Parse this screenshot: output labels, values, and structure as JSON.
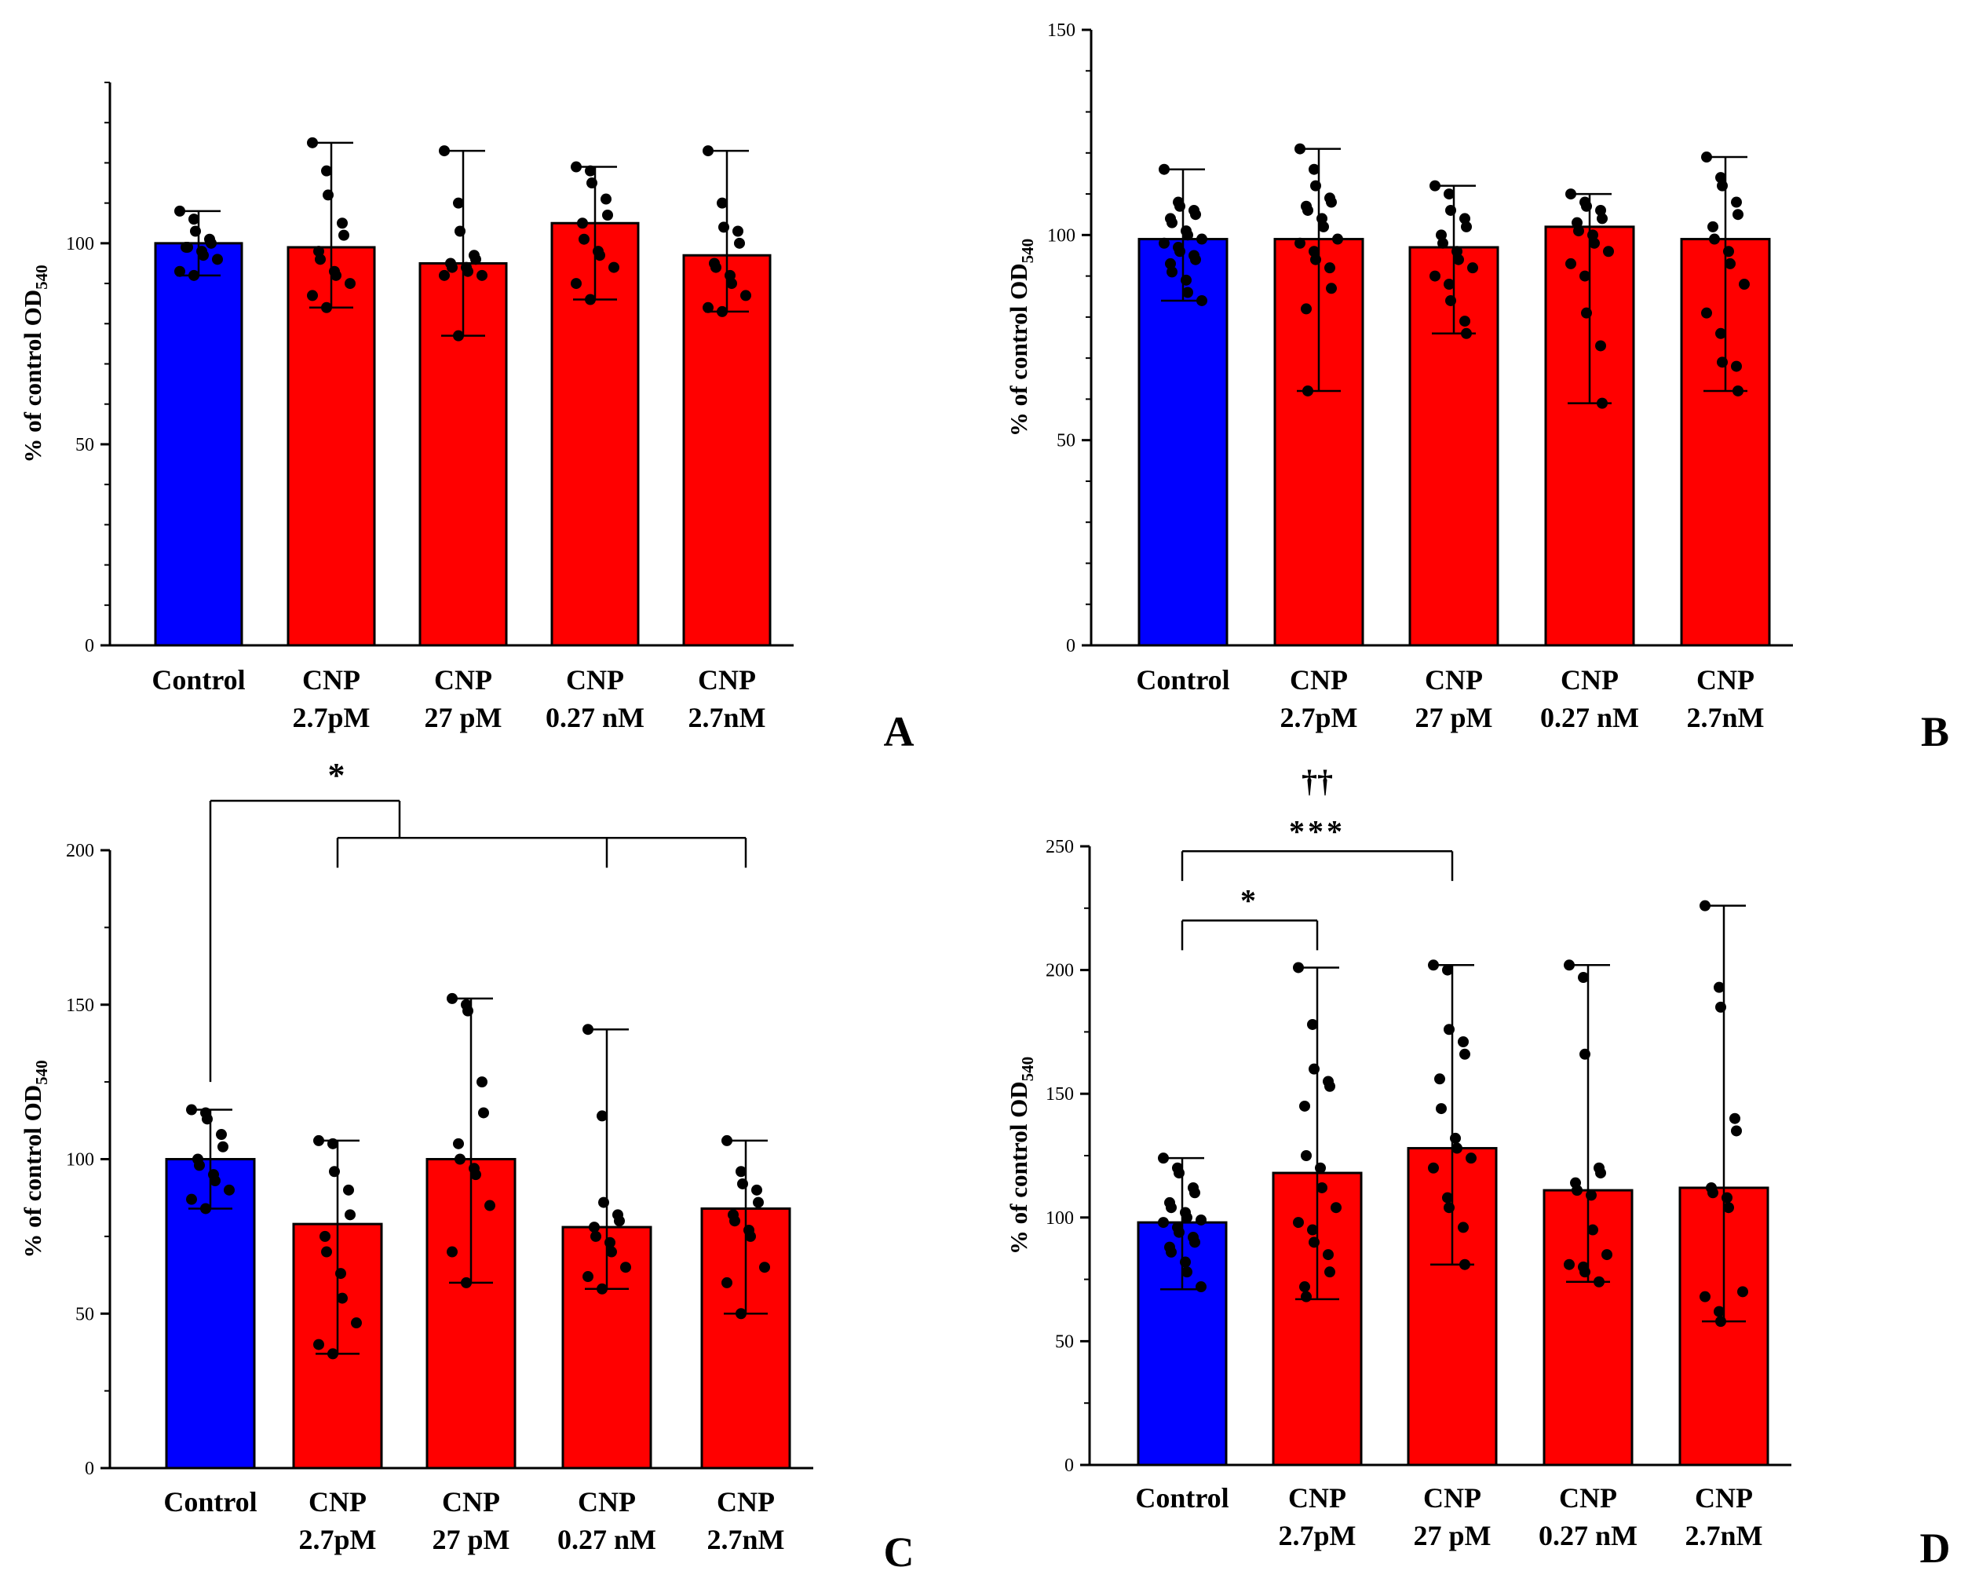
{
  "figure": {
    "panel_count": 4
  },
  "colors": {
    "control": "#0000ff",
    "treatment": "#ff0000",
    "axis": "#000000",
    "point": "#000000"
  },
  "chart_data": [
    {
      "id": "A",
      "panel_label": "A",
      "type": "bar",
      "categories": [
        [
          "Control"
        ],
        [
          "CNP",
          "2.7pM"
        ],
        [
          "CNP",
          "27 pM"
        ],
        [
          "CNP",
          "0.27 nM"
        ],
        [
          "CNP",
          "2.7nM"
        ]
      ],
      "ylabel": "% of control OD",
      "ylabel_sub": "540",
      "ylim": [
        0,
        140
      ],
      "yticks": [
        0,
        50,
        100
      ],
      "values": [
        100,
        99,
        95,
        105,
        97
      ],
      "errors": [
        [
          92,
          108
        ],
        [
          84,
          125
        ],
        [
          77,
          123
        ],
        [
          86,
          119
        ],
        [
          83,
          123
        ]
      ],
      "points": [
        [
          108,
          106,
          103,
          101,
          100,
          99,
          99,
          98,
          97,
          96,
          93,
          92
        ],
        [
          125,
          118,
          112,
          105,
          102,
          98,
          96,
          93,
          92,
          90,
          87,
          84
        ],
        [
          123,
          110,
          103,
          97,
          96,
          95,
          94,
          94,
          93,
          92,
          92,
          77
        ],
        [
          119,
          118,
          115,
          111,
          107,
          105,
          101,
          98,
          97,
          94,
          90,
          86
        ],
        [
          123,
          110,
          104,
          103,
          100,
          95,
          94,
          92,
          90,
          87,
          84,
          83
        ]
      ],
      "significance": []
    },
    {
      "id": "B",
      "panel_label": "B",
      "type": "bar",
      "categories": [
        [
          "Control"
        ],
        [
          "CNP",
          "2.7pM"
        ],
        [
          "CNP",
          "27 pM"
        ],
        [
          "CNP",
          "0.27 nM"
        ],
        [
          "CNP",
          "2.7nM"
        ]
      ],
      "ylabel": "% of control OD",
      "ylabel_sub": "540",
      "ylim": [
        0,
        150
      ],
      "yticks": [
        0,
        50,
        100,
        150
      ],
      "values": [
        99,
        99,
        97,
        102,
        99
      ],
      "errors": [
        [
          84,
          116
        ],
        [
          62,
          121
        ],
        [
          76,
          112
        ],
        [
          59,
          110
        ],
        [
          62,
          119
        ]
      ],
      "points": [
        [
          116,
          108,
          107,
          106,
          105,
          104,
          103,
          101,
          100,
          99,
          98,
          97,
          96,
          95,
          94,
          93,
          91,
          89,
          86,
          84
        ],
        [
          121,
          116,
          112,
          109,
          108,
          107,
          106,
          104,
          102,
          99,
          98,
          96,
          94,
          92,
          87,
          82,
          62
        ],
        [
          112,
          110,
          106,
          104,
          102,
          100,
          98,
          96,
          94,
          92,
          90,
          88,
          84,
          79,
          76
        ],
        [
          110,
          108,
          107,
          106,
          104,
          103,
          101,
          100,
          98,
          96,
          93,
          90,
          81,
          73,
          59
        ],
        [
          119,
          114,
          112,
          108,
          105,
          102,
          99,
          96,
          93,
          88,
          81,
          76,
          69,
          68,
          62
        ]
      ],
      "significance": []
    },
    {
      "id": "C",
      "panel_label": "C",
      "type": "bar",
      "categories": [
        [
          "Control"
        ],
        [
          "CNP",
          "2.7pM"
        ],
        [
          "CNP",
          "27 pM"
        ],
        [
          "CNP",
          "0.27 nM"
        ],
        [
          "CNP",
          "2.7nM"
        ]
      ],
      "ylabel": "% of control OD",
      "ylabel_sub": "540",
      "ylim": [
        0,
        200
      ],
      "yticks": [
        0,
        50,
        100,
        150,
        200
      ],
      "values": [
        100,
        79,
        100,
        78,
        84
      ],
      "errors": [
        [
          84,
          116
        ],
        [
          37,
          106
        ],
        [
          60,
          152
        ],
        [
          58,
          142
        ],
        [
          50,
          106
        ]
      ],
      "points": [
        [
          116,
          115,
          113,
          108,
          104,
          100,
          98,
          95,
          93,
          90,
          87,
          84
        ],
        [
          106,
          105,
          96,
          90,
          82,
          75,
          70,
          63,
          55,
          47,
          40,
          37
        ],
        [
          152,
          150,
          148,
          125,
          115,
          105,
          100,
          97,
          95,
          85,
          70,
          60
        ],
        [
          142,
          114,
          86,
          82,
          80,
          78,
          75,
          73,
          70,
          65,
          62,
          58
        ],
        [
          106,
          96,
          92,
          90,
          86,
          82,
          80,
          77,
          75,
          65,
          60,
          50
        ]
      ],
      "significance": [
        {
          "label": "*",
          "type": "group",
          "from": 0,
          "to": [
            1,
            3,
            4
          ],
          "y": 216,
          "sub_y": 204
        }
      ]
    },
    {
      "id": "D",
      "panel_label": "D",
      "type": "bar",
      "categories": [
        [
          "Control"
        ],
        [
          "CNP",
          "2.7pM"
        ],
        [
          "CNP",
          "27 pM"
        ],
        [
          "CNP",
          "0.27 nM"
        ],
        [
          "CNP",
          "2.7nM"
        ]
      ],
      "ylabel": "% of control OD",
      "ylabel_sub": "540",
      "ylim": [
        0,
        250
      ],
      "yticks": [
        0,
        50,
        100,
        150,
        200,
        250
      ],
      "values": [
        98,
        118,
        128,
        111,
        112
      ],
      "errors": [
        [
          71,
          124
        ],
        [
          67,
          201
        ],
        [
          81,
          202
        ],
        [
          74,
          202
        ],
        [
          58,
          226
        ]
      ],
      "points": [
        [
          124,
          120,
          118,
          112,
          110,
          106,
          104,
          102,
          100,
          99,
          98,
          96,
          94,
          92,
          90,
          88,
          86,
          82,
          78,
          72
        ],
        [
          201,
          178,
          160,
          155,
          153,
          145,
          125,
          120,
          112,
          104,
          98,
          95,
          90,
          85,
          78,
          72,
          68
        ],
        [
          202,
          200,
          176,
          171,
          166,
          156,
          144,
          132,
          128,
          124,
          120,
          108,
          104,
          96,
          81
        ],
        [
          202,
          197,
          166,
          120,
          118,
          114,
          111,
          109,
          95,
          85,
          81,
          80,
          78,
          74
        ],
        [
          226,
          193,
          185,
          140,
          135,
          112,
          110,
          108,
          104,
          70,
          68,
          62,
          58
        ]
      ],
      "significance": [
        {
          "label": "*",
          "type": "pair",
          "from": 0,
          "to": 1,
          "y": 220,
          "drop": 12
        },
        {
          "label": "***",
          "type": "pair",
          "from": 0,
          "to": 2,
          "y": 248,
          "drop": 12
        },
        {
          "label": "††",
          "type": "text",
          "at": 1,
          "y": 272
        }
      ]
    }
  ]
}
